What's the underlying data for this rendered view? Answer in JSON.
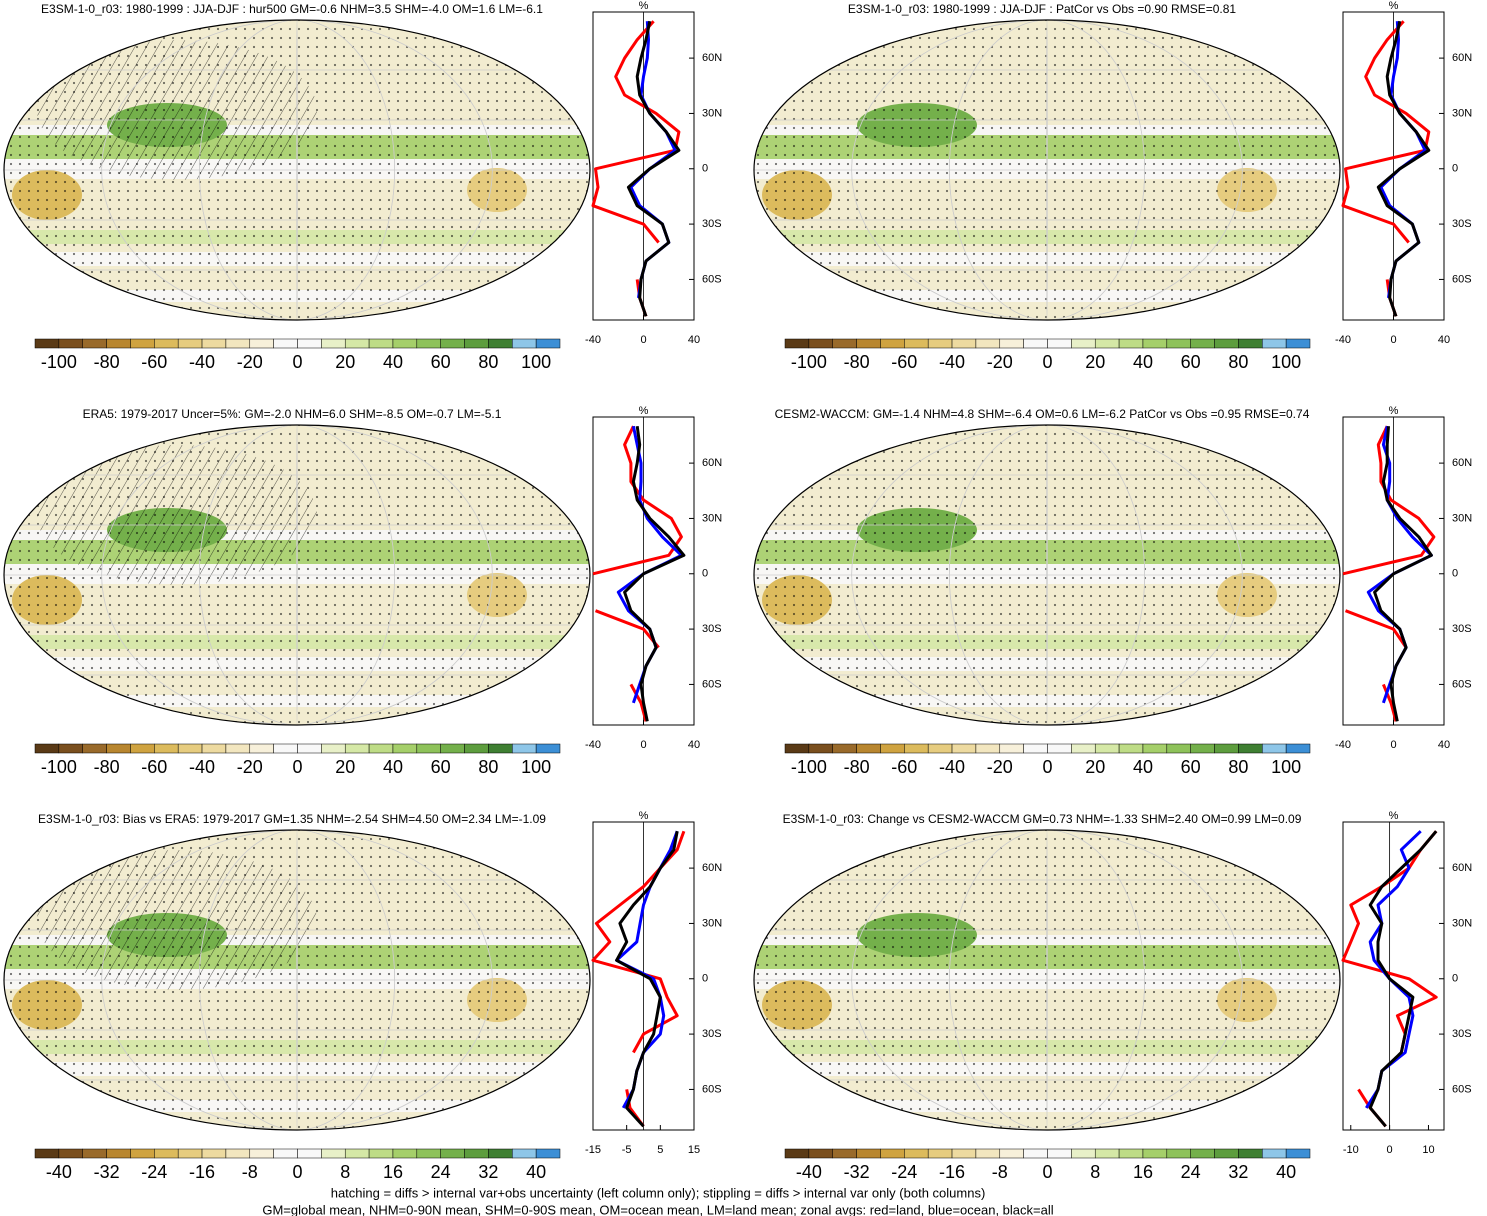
{
  "colors": [
    "#5a3a16",
    "#7a4f1e",
    "#996a2a",
    "#b8862f",
    "#cfa340",
    "#dcbb5d",
    "#e6cc7f",
    "#eddaa0",
    "#f2e6bf",
    "#f7f0da",
    "#f8f8f8",
    "#f8f8f8",
    "#e8f0c8",
    "#d5e8a6",
    "#bedc86",
    "#a5cf6a",
    "#8ec25a",
    "#74b04b",
    "#5d9d3e",
    "#3f7f32",
    "#8ec6e8",
    "#3c8fd6"
  ],
  "panels": [
    {
      "title": "E3SM-1-0_r03: 1980-1999 : JJA-DJF : hur500 GM=-0.6 NHM=3.5 SHM=-4.0 OM=1.6 LM=-6.1",
      "colorbar": {
        "lim": [
          -110,
          110
        ],
        "ticks": [
          -100,
          -80,
          -60,
          -40,
          -20,
          0,
          20,
          40,
          60,
          80,
          100
        ]
      },
      "profile": {
        "unit": "%",
        "xlim": [
          -40,
          40
        ],
        "xticks": [
          -40,
          0,
          40
        ],
        "ylim": [
          -82,
          85
        ],
        "yticks": [
          {
            "value": 60,
            "label": "60N"
          },
          {
            "value": 30,
            "label": "30N"
          },
          0,
          {
            "value": -30,
            "label": "30S"
          },
          {
            "value": -60,
            "label": "60S"
          }
        ],
        "lat": [
          80,
          70,
          60,
          50,
          40,
          30,
          20,
          10,
          0,
          -10,
          -20,
          -30,
          -40,
          -50,
          -60,
          -70,
          -80
        ],
        "series": [
          {
            "color": "#ff0000",
            "values": [
              8,
              -5,
              -15,
              -22,
              -15,
              10,
              28,
              25,
              -38,
              -36,
              -40,
              0,
              12,
              null,
              -5,
              -3,
              2
            ]
          },
          {
            "color": "#0000ff",
            "values": [
              3,
              4,
              3,
              0,
              -2,
              5,
              18,
              25,
              5,
              -10,
              -3,
              15,
              20,
              2,
              -2,
              -4,
              null
            ]
          },
          {
            "color": "#000000",
            "values": [
              5,
              2,
              -2,
              -5,
              -3,
              5,
              18,
              28,
              5,
              -12,
              -5,
              15,
              20,
              2,
              -2,
              -3,
              2
            ]
          }
        ]
      }
    },
    {
      "title": "E3SM-1-0_r03: 1980-1999 : JJA-DJF : PatCor vs Obs =0.90 RMSE=0.81",
      "colorbar": {
        "lim": [
          -110,
          110
        ],
        "ticks": [
          -100,
          -80,
          -60,
          -40,
          -20,
          0,
          20,
          40,
          60,
          80,
          100
        ]
      },
      "profile": {
        "unit": "%",
        "xlim": [
          -40,
          40
        ],
        "xticks": [
          -40,
          0,
          40
        ],
        "ylim": [
          -82,
          85
        ],
        "yticks": [
          {
            "value": 60,
            "label": "60N"
          },
          {
            "value": 30,
            "label": "30N"
          },
          0,
          {
            "value": -30,
            "label": "30S"
          },
          {
            "value": -60,
            "label": "60S"
          }
        ],
        "lat": [
          80,
          70,
          60,
          50,
          40,
          30,
          20,
          10,
          0,
          -10,
          -20,
          -30,
          -40,
          -50,
          -60,
          -70,
          -80
        ],
        "series": [
          {
            "color": "#ff0000",
            "values": [
              8,
              -5,
              -15,
              -22,
              -15,
              10,
              28,
              25,
              -38,
              -36,
              -40,
              0,
              12,
              null,
              -5,
              -3,
              2
            ]
          },
          {
            "color": "#0000ff",
            "values": [
              3,
              4,
              3,
              0,
              -2,
              5,
              18,
              25,
              5,
              -10,
              -3,
              15,
              20,
              2,
              -2,
              -4,
              null
            ]
          },
          {
            "color": "#000000",
            "values": [
              5,
              2,
              -2,
              -5,
              -3,
              5,
              18,
              28,
              5,
              -12,
              -5,
              15,
              20,
              2,
              -2,
              -3,
              2
            ]
          }
        ]
      }
    },
    {
      "title": "ERA5: 1979-2017 Uncer=5%: GM=-2.0 NHM=6.0 SHM=-8.5 OM=-0.7 LM=-5.1",
      "colorbar": {
        "lim": [
          -110,
          110
        ],
        "ticks": [
          -100,
          -80,
          -60,
          -40,
          -20,
          0,
          20,
          40,
          60,
          80,
          100
        ]
      },
      "profile": {
        "unit": "%",
        "xlim": [
          -40,
          40
        ],
        "xticks": [
          -40,
          0,
          40
        ],
        "ylim": [
          -82,
          85
        ],
        "yticks": [
          {
            "value": 60,
            "label": "60N"
          },
          {
            "value": 30,
            "label": "30N"
          },
          0,
          {
            "value": -30,
            "label": "30S"
          },
          {
            "value": -60,
            "label": "60S"
          }
        ],
        "lat": [
          80,
          70,
          60,
          50,
          40,
          30,
          20,
          10,
          0,
          -10,
          -20,
          -30,
          -40,
          -50,
          -60,
          -70,
          -80
        ],
        "series": [
          {
            "color": "#ff0000",
            "values": [
              -8,
              -15,
              -10,
              -10,
              0,
              22,
              30,
              20,
              -40,
              null,
              -38,
              0,
              12,
              null,
              -10,
              -2,
              2
            ]
          },
          {
            "color": "#0000ff",
            "values": [
              -8,
              -5,
              -2,
              -2,
              -3,
              3,
              15,
              30,
              0,
              -20,
              -12,
              5,
              10,
              2,
              -3,
              -8,
              null
            ]
          },
          {
            "color": "#000000",
            "values": [
              -5,
              -3,
              -5,
              -8,
              -5,
              5,
              20,
              32,
              0,
              -15,
              -10,
              5,
              10,
              2,
              -2,
              0,
              3
            ]
          }
        ]
      }
    },
    {
      "title": "CESM2-WACCM: GM=-1.4 NHM=4.8 SHM=-6.4 OM=0.6 LM=-6.2 PatCor vs Obs =0.95 RMSE=0.74",
      "colorbar": {
        "lim": [
          -110,
          110
        ],
        "ticks": [
          -100,
          -80,
          -60,
          -40,
          -20,
          0,
          20,
          40,
          60,
          80,
          100
        ]
      },
      "profile": {
        "unit": "%",
        "xlim": [
          -40,
          40
        ],
        "xticks": [
          -40,
          0,
          40
        ],
        "ylim": [
          -82,
          85
        ],
        "yticks": [
          {
            "value": 60,
            "label": "60N"
          },
          {
            "value": 30,
            "label": "30N"
          },
          0,
          {
            "value": -30,
            "label": "30S"
          },
          {
            "value": -60,
            "label": "60S"
          }
        ],
        "lat": [
          80,
          70,
          60,
          50,
          40,
          30,
          20,
          10,
          0,
          -10,
          -20,
          -30,
          -40,
          -50,
          -60,
          -70,
          -80
        ],
        "series": [
          {
            "color": "#ff0000",
            "values": [
              -5,
              -12,
              -10,
              -10,
              -2,
              20,
              32,
              22,
              -40,
              null,
              -38,
              0,
              10,
              null,
              -8,
              -2,
              2
            ]
          },
          {
            "color": "#0000ff",
            "values": [
              -5,
              -8,
              -3,
              -3,
              -5,
              3,
              15,
              30,
              0,
              -20,
              -12,
              5,
              10,
              2,
              -3,
              -8,
              null
            ]
          },
          {
            "color": "#000000",
            "values": [
              -4,
              -5,
              -5,
              -8,
              -5,
              5,
              20,
              30,
              0,
              -15,
              -10,
              5,
              10,
              2,
              -2,
              0,
              3
            ]
          }
        ]
      }
    },
    {
      "title": "E3SM-1-0_r03: Bias vs ERA5: 1979-2017 GM=1.35 NHM=-2.54 SHM=4.50 OM=2.34 LM=-1.09",
      "colorbar": {
        "lim": [
          -44,
          44
        ],
        "ticks": [
          -40,
          -32,
          -24,
          -16,
          -8,
          0,
          8,
          16,
          24,
          32,
          40
        ]
      },
      "profile": {
        "unit": "%",
        "xlim": [
          -15,
          15
        ],
        "xticks": [
          -15,
          -5,
          5,
          15
        ],
        "ylim": [
          -82,
          85
        ],
        "yticks": [
          {
            "value": 60,
            "label": "60N"
          },
          {
            "value": 30,
            "label": "30N"
          },
          0,
          {
            "value": -30,
            "label": "30S"
          },
          {
            "value": -60,
            "label": "60S"
          }
        ],
        "lat": [
          80,
          70,
          60,
          50,
          40,
          30,
          20,
          10,
          0,
          -10,
          -20,
          -30,
          -40,
          -50,
          -60,
          -70,
          -80
        ],
        "series": [
          {
            "color": "#ff0000",
            "values": [
              12,
              10,
              5,
              0,
              -7,
              -14,
              -10,
              -15,
              5,
              7,
              10,
              0,
              -3,
              null,
              -5,
              -4,
              0
            ]
          },
          {
            "color": "#0000ff",
            "values": [
              10,
              8,
              5,
              2,
              0,
              -1,
              -2,
              -8,
              3,
              5,
              6,
              5,
              0,
              -2,
              -3,
              -6,
              null
            ]
          },
          {
            "color": "#000000",
            "values": [
              10,
              9,
              5,
              2,
              -3,
              -7,
              -5,
              -8,
              2,
              5,
              4,
              3,
              0,
              -2,
              -3,
              -5,
              0
            ]
          }
        ]
      }
    },
    {
      "title": "E3SM-1-0_r03: Change vs CESM2-WACCM GM=0.73 NHM=-1.33 SHM=2.40 OM=0.99 LM=0.09",
      "colorbar": {
        "lim": [
          -44,
          44
        ],
        "ticks": [
          -40,
          -32,
          -24,
          -16,
          -8,
          0,
          8,
          16,
          24,
          32,
          40
        ]
      },
      "profile": {
        "unit": "%",
        "xlim": [
          -12,
          14
        ],
        "xticks": [
          -10,
          0,
          10
        ],
        "ylim": [
          -82,
          85
        ],
        "yticks": [
          {
            "value": 60,
            "label": "60N"
          },
          {
            "value": 30,
            "label": "30N"
          },
          0,
          {
            "value": -30,
            "label": "30S"
          },
          {
            "value": -60,
            "label": "60S"
          }
        ],
        "lat": [
          80,
          70,
          60,
          50,
          40,
          30,
          20,
          10,
          0,
          -10,
          -20,
          -30,
          -40,
          -50,
          -60,
          -70,
          -80
        ],
        "series": [
          {
            "color": "#ff0000",
            "values": [
              12,
              8,
              5,
              -2,
              -10,
              -8,
              -10,
              -12,
              5,
              12,
              2,
              4,
              3,
              null,
              -8,
              -5,
              -1
            ]
          },
          {
            "color": "#0000ff",
            "values": [
              8,
              3,
              5,
              2,
              -3,
              -2,
              -5,
              -4,
              0,
              5,
              6,
              5,
              4,
              -2,
              -3,
              -6,
              null
            ]
          },
          {
            "color": "#000000",
            "values": [
              12,
              8,
              3,
              -2,
              -5,
              -2,
              -3,
              -3,
              0,
              6,
              5,
              4,
              3,
              -2,
              -3,
              -5,
              -1
            ]
          }
        ]
      }
    }
  ],
  "footnote": [
    "hatching = diffs > internal var+obs uncertainty (left column only); stippling = diffs > internal var only (both columns)",
    "GM=global mean, NHM=0-90N mean, SHM=0-90S mean, OM=ocean mean, LM=land mean; zonal avgs: red=land, blue=ocean, black=all"
  ]
}
